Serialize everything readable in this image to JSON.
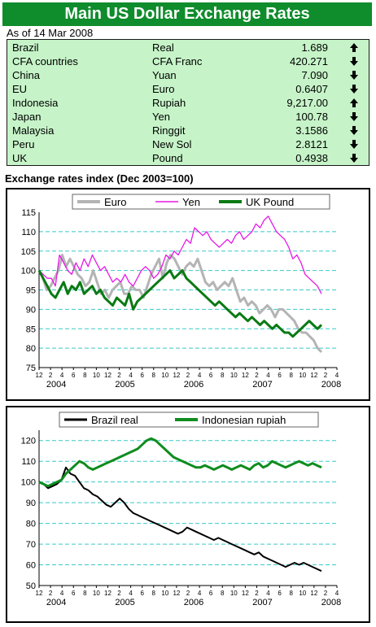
{
  "header": {
    "title": "Main US Dollar Exchange Rates",
    "as_of": "As of 14 Mar 2008"
  },
  "rates": [
    {
      "country": "Brazil",
      "currency": "Real",
      "value": "1.689",
      "trend": "up"
    },
    {
      "country": "CFA countries",
      "currency": "CFA Franc",
      "value": "420.271",
      "trend": "down"
    },
    {
      "country": "China",
      "currency": "Yuan",
      "value": "7.090",
      "trend": "down"
    },
    {
      "country": "EU",
      "currency": "Euro",
      "value": "0.6407",
      "trend": "down"
    },
    {
      "country": "Indonesia",
      "currency": "Rupiah",
      "value": "9,217.00",
      "trend": "up"
    },
    {
      "country": "Japan",
      "currency": "Yen",
      "value": "100.78",
      "trend": "down"
    },
    {
      "country": "Malaysia",
      "currency": "Ringgit",
      "value": "3.1586",
      "trend": "down"
    },
    {
      "country": "Peru",
      "currency": "New Sol",
      "value": "2.8121",
      "trend": "down"
    },
    {
      "country": "UK",
      "currency": "Pound",
      "value": "0.4938",
      "trend": "down"
    }
  ],
  "colors": {
    "header_bg": "#0f8c2c",
    "table_bg": "#c6f4c8",
    "euro": "#b4b4b4",
    "yen": "#e619e6",
    "pound": "#0a7a14",
    "real": "#000000",
    "rupiah": "#0f8c1e",
    "gridline": "#3cc8c8"
  },
  "chart_data": [
    {
      "type": "line",
      "title": "Exchange rates index (Dec 2003=100)",
      "ylim": [
        75,
        115
      ],
      "yticks": [
        "75",
        "80",
        "85",
        "90",
        "95",
        "100",
        "105",
        "110",
        "115"
      ],
      "x_ticks": [
        "12",
        "2",
        "4",
        "6",
        "8",
        "10",
        "12",
        "2",
        "4",
        "6",
        "8",
        "10",
        "12",
        "2",
        "4",
        "6",
        "8",
        "10",
        "12",
        "2",
        "4",
        "6",
        "8",
        "10",
        "12",
        "2",
        "4"
      ],
      "year_labels": [
        "2004",
        "2005",
        "2006",
        "2007",
        "2008"
      ],
      "legend_position": "top",
      "grid": true,
      "series": [
        {
          "name": "Euro",
          "values": [
            100,
            98,
            95,
            96,
            98,
            100,
            104,
            101,
            103,
            101,
            99,
            98,
            96,
            97,
            100,
            97,
            94,
            95,
            93,
            95,
            96,
            97,
            94,
            94,
            96,
            95,
            95,
            93,
            96,
            99,
            101,
            103,
            98,
            102,
            104,
            103,
            101,
            99,
            101,
            102,
            101,
            103,
            100,
            97,
            96,
            97,
            95,
            96,
            97,
            96,
            98,
            95,
            92,
            93,
            91,
            92,
            91,
            89,
            90,
            91,
            90,
            88,
            90,
            90,
            89,
            88,
            87,
            85,
            84,
            84,
            83,
            82,
            80,
            79
          ]
        },
        {
          "name": "Yen",
          "values": [
            100,
            99,
            98,
            98,
            96,
            104,
            102,
            100,
            99,
            102,
            100,
            103,
            101,
            104,
            102,
            100,
            101,
            99,
            97,
            98,
            97,
            99,
            97,
            96,
            98,
            100,
            101,
            100,
            98,
            99,
            101,
            104,
            103,
            105,
            104,
            106,
            108,
            107,
            111,
            110,
            109,
            110,
            108,
            107,
            106,
            107,
            108,
            107,
            109,
            110,
            108,
            109,
            110,
            112,
            111,
            113,
            114,
            112,
            110,
            109,
            108,
            106,
            103,
            104,
            102,
            99,
            98,
            97,
            96,
            94
          ]
        },
        {
          "name": "UK Pound",
          "values": [
            100,
            98,
            96,
            94,
            93,
            95,
            97,
            94,
            96,
            95,
            97,
            94,
            95,
            96,
            94,
            95,
            93,
            92,
            91,
            93,
            92,
            91,
            94,
            90,
            92,
            93,
            94,
            95,
            96,
            97,
            98,
            99,
            100,
            98,
            99,
            100,
            98,
            97,
            96,
            95,
            94,
            93,
            92,
            91,
            92,
            91,
            90,
            89,
            88,
            89,
            88,
            87,
            88,
            87,
            86,
            87,
            86,
            85,
            86,
            85,
            84,
            84,
            83,
            84,
            85,
            86,
            87,
            86,
            85,
            86
          ]
        }
      ]
    },
    {
      "type": "line",
      "ylim": [
        50,
        125
      ],
      "yticks": [
        "50",
        "60",
        "70",
        "80",
        "90",
        "100",
        "110",
        "120"
      ],
      "x_ticks": [
        "12",
        "2",
        "4",
        "6",
        "8",
        "10",
        "12",
        "2",
        "4",
        "6",
        "8",
        "10",
        "12",
        "2",
        "4",
        "6",
        "8",
        "10",
        "12",
        "2",
        "4",
        "6",
        "8",
        "10",
        "12",
        "2",
        "4"
      ],
      "year_labels": [
        "2004",
        "2005",
        "2006",
        "2007",
        "2008"
      ],
      "legend_position": "top",
      "grid": true,
      "series": [
        {
          "name": "Brazil real",
          "values": [
            100,
            99,
            97,
            98,
            99,
            101,
            107,
            104,
            103,
            100,
            97,
            96,
            94,
            93,
            91,
            89,
            88,
            90,
            92,
            90,
            87,
            85,
            84,
            83,
            82,
            81,
            80,
            79,
            78,
            77,
            76,
            75,
            76,
            78,
            77,
            76,
            75,
            74,
            73,
            72,
            73,
            72,
            71,
            70,
            69,
            68,
            67,
            66,
            65,
            66,
            64,
            63,
            62,
            61,
            60,
            59,
            60,
            61,
            60,
            61,
            60,
            59,
            58,
            57
          ]
        },
        {
          "name": "Indonesian rupiah",
          "values": [
            100,
            99,
            98,
            99,
            100,
            101,
            104,
            106,
            108,
            110,
            109,
            107,
            106,
            107,
            108,
            109,
            110,
            111,
            112,
            113,
            114,
            115,
            116,
            118,
            120,
            121,
            120,
            118,
            116,
            114,
            112,
            111,
            110,
            109,
            108,
            107,
            107,
            108,
            107,
            106,
            107,
            108,
            107,
            106,
            107,
            108,
            107,
            106,
            108,
            109,
            107,
            108,
            110,
            109,
            108,
            107,
            108,
            109,
            110,
            109,
            108,
            109,
            108,
            107
          ]
        }
      ]
    }
  ]
}
